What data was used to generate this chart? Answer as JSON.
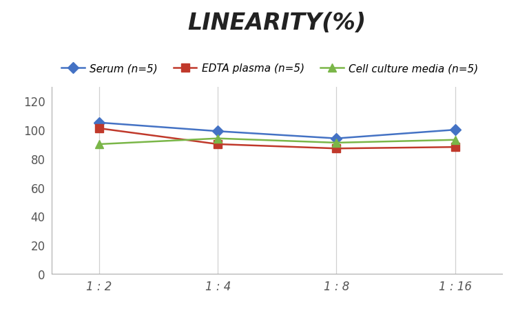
{
  "title": "LINEARITY(%)",
  "x_labels": [
    "1 : 2",
    "1 : 4",
    "1 : 8",
    "1 : 16"
  ],
  "x_positions": [
    0,
    1,
    2,
    3
  ],
  "series": [
    {
      "label": "Serum (n=5)",
      "values": [
        105,
        99,
        94,
        100
      ],
      "color": "#4472C4",
      "marker": "D",
      "markersize": 8,
      "linewidth": 1.8
    },
    {
      "label": "EDTA plasma (n=5)",
      "values": [
        101,
        90,
        87,
        88
      ],
      "color": "#C0392B",
      "marker": "s",
      "markersize": 8,
      "linewidth": 1.8
    },
    {
      "label": "Cell culture media (n=5)",
      "values": [
        90,
        94,
        91,
        93
      ],
      "color": "#7AB648",
      "marker": "^",
      "markersize": 9,
      "linewidth": 1.8
    }
  ],
  "ylim": [
    0,
    130
  ],
  "yticks": [
    0,
    20,
    40,
    60,
    80,
    100,
    120
  ],
  "background_color": "#ffffff",
  "grid_color": "#d0d0d0",
  "title_fontsize": 24,
  "legend_fontsize": 11,
  "tick_fontsize": 12
}
